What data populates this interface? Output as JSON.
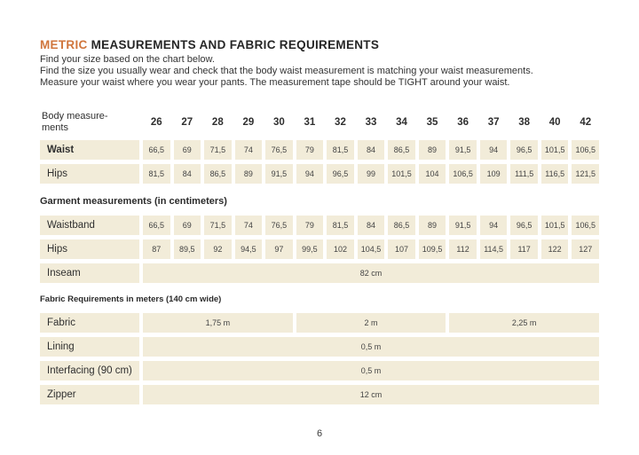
{
  "colors": {
    "accent": "#d0763d",
    "cell_bg": "#f2ecd9",
    "text": "#2f2f2f"
  },
  "header": {
    "title_accent": "METRIC",
    "title_rest": " MEASUREMENTS AND FABRIC REQUIREMENTS",
    "intro_lines": [
      "Find your size based on the chart below.",
      "Find the size you usually wear and check that the body waist measurement is matching your waist measurements.",
      "Measure your waist where you wear your pants. The measurement tape should be TIGHT around your waist."
    ]
  },
  "table": {
    "corner_label": "Body measure-\nments",
    "sizes": [
      "26",
      "27",
      "28",
      "29",
      "30",
      "31",
      "32",
      "33",
      "34",
      "35",
      "36",
      "37",
      "38",
      "40",
      "42"
    ],
    "body_rows": [
      {
        "label": "Waist",
        "bold": true,
        "values": [
          "66,5",
          "69",
          "71,5",
          "74",
          "76,5",
          "79",
          "81,5",
          "84",
          "86,5",
          "89",
          "91,5",
          "94",
          "96,5",
          "101,5",
          "106,5"
        ]
      },
      {
        "label": "Hips",
        "bold": false,
        "values": [
          "81,5",
          "84",
          "86,5",
          "89",
          "91,5",
          "94",
          "96,5",
          "99",
          "101,5",
          "104",
          "106,5",
          "109",
          "111,5",
          "116,5",
          "121,5"
        ]
      }
    ],
    "garment_title": "Garment measurements (in centimeters)",
    "garment_rows": [
      {
        "label": "Waistband",
        "values": [
          "66,5",
          "69",
          "71,5",
          "74",
          "76,5",
          "79",
          "81,5",
          "84",
          "86,5",
          "89",
          "91,5",
          "94",
          "96,5",
          "101,5",
          "106,5"
        ]
      },
      {
        "label": "Hips",
        "values": [
          "87",
          "89,5",
          "92",
          "94,5",
          "97",
          "99,5",
          "102",
          "104,5",
          "107",
          "109,5",
          "112",
          "114,5",
          "117",
          "122",
          "127"
        ]
      },
      {
        "label": "Inseam",
        "span_value": "82 cm"
      }
    ],
    "fabric_title": "Fabric Requirements in meters (140 cm wide)",
    "fabric_rows": [
      {
        "label": "Fabric",
        "spans": [
          {
            "value": "1,75 m",
            "cols": 5
          },
          {
            "value": "2 m",
            "cols": 5
          },
          {
            "value": "2,25 m",
            "cols": 5
          }
        ]
      },
      {
        "label": "Lining",
        "span_value": "0,5 m"
      },
      {
        "label": "Interfacing (90 cm)",
        "span_value": "0,5 m"
      },
      {
        "label": "Zipper",
        "span_value": "12 cm"
      }
    ]
  },
  "footer": {
    "page_number": "6"
  }
}
